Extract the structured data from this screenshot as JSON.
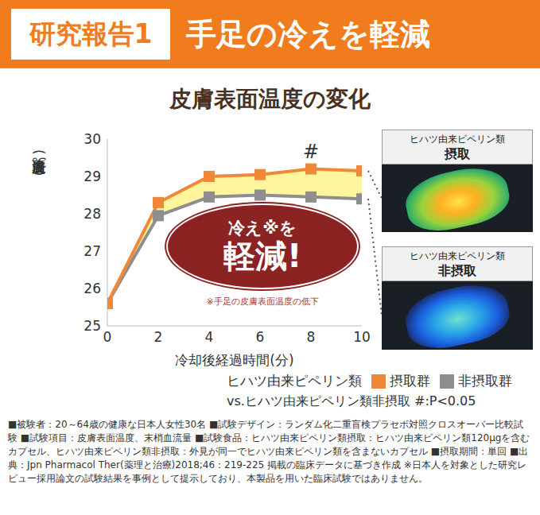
{
  "header": {
    "badge": "研究報告1",
    "title": "手足の冷えを軽減"
  },
  "chart_data": {
    "type": "line",
    "title": "皮膚表面温度の変化",
    "x_label": "冷却後経過時間(分)",
    "y_label": "皮膚表面温度(℃)",
    "x": [
      0,
      2,
      4,
      6,
      8,
      10
    ],
    "xlim": [
      0,
      10
    ],
    "xticks": [
      0,
      2,
      4,
      6,
      8,
      10
    ],
    "ylim": [
      25,
      30
    ],
    "yticks": [
      25,
      26,
      27,
      28,
      29,
      30
    ],
    "grid": false,
    "legend": "bottom",
    "legend_title": "ヒハツ由来ピペリン類",
    "marker": "square",
    "series": [
      {
        "name": "摂取群",
        "color": "#f0883a",
        "values": [
          25.6,
          28.3,
          29.0,
          29.05,
          29.2,
          29.15
        ]
      },
      {
        "name": "非摂取群",
        "color": "#8e8e8e",
        "values": [
          25.6,
          27.95,
          28.45,
          28.5,
          28.45,
          28.4
        ]
      }
    ],
    "annotations": [
      {
        "x": 8,
        "text": "#"
      }
    ],
    "significance_note": "vs.ヒハツ由来ピペリン類非摂取 #:P<0.05",
    "callout": {
      "title": "冷え※を",
      "emphasis": "軽減!",
      "note": "※手足の皮膚表面温度の低下"
    }
  },
  "images": [
    {
      "label": "ヒハツ由来ピペリン類",
      "sublabel": "摂取"
    },
    {
      "label": "ヒハツ由来ピペリン類",
      "sublabel": "非摂取"
    }
  ],
  "footnote": "■被験者：20～64歳の健康な日本人女性30名 ■試験デザイン：ランダム化二重盲検プラセボ対照クロスオーバー比較試験 ■試験項目：皮膚表面温度、末梢血流量 ■試験食品：ヒハツ由来ピペリン類摂取：ヒハツ由来ピペリン類120μgを含むカプセル、ヒハツ由来ピペリン類非摂取：外見が同一でヒハツ由来ピペリン類を含まないカプセル ■摂取期間：単回 ■出典：Jpn Pharmacol Ther(薬理と治療)2018;46：219-225 掲載の臨床データに基づき作成 ※日本人を対象とした研究レビュー採用論文の試験結果を事例として提示しており、本製品を用いた臨床試験ではありません。"
}
